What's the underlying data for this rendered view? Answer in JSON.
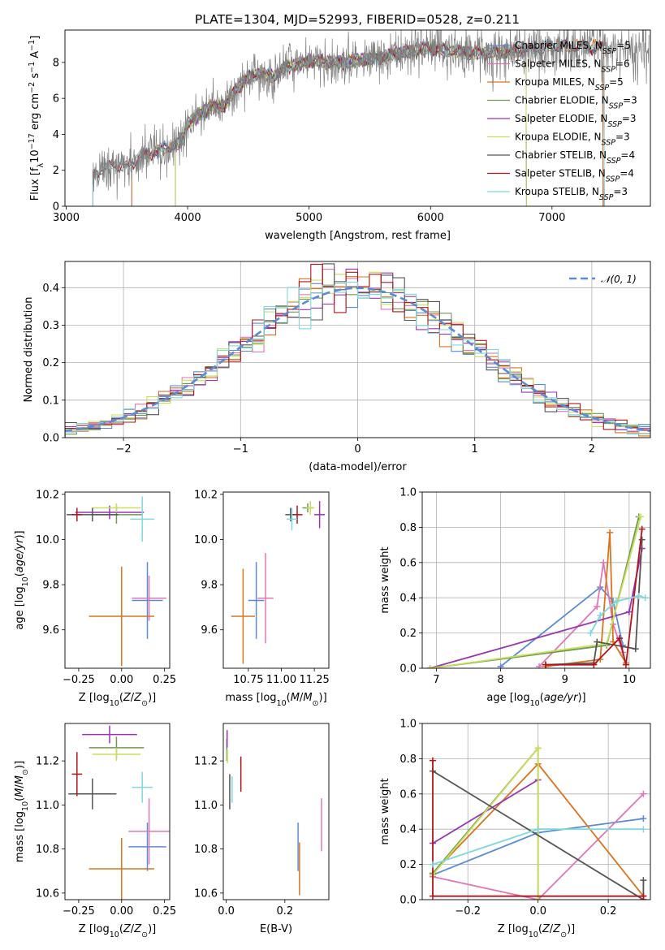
{
  "title": "PLATE=1304, MJD=52993, FIBERID=0528, z=0.211",
  "colors": {
    "Chabrier MILES": "#5b8bd6",
    "Salpeter MILES": "#e276b5",
    "Kroupa MILES": "#d9741d",
    "Chabrier ELODIE": "#6f9a52",
    "Salpeter ELODIE": "#9b34b3",
    "Kroupa ELODIE": "#c8df5a",
    "Chabrier STELIB": "#555555",
    "Salpeter STELIB": "#b3141b",
    "Kroupa STELIB": "#7fd8dd",
    "data": "#808080",
    "normal": "#5b8bd6"
  },
  "chart_data": [
    {
      "type": "line",
      "name": "spectrum",
      "xlabel": "wavelength [Angstrom, rest frame]",
      "ylabel": "Flux [f_λ 10^-17 erg cm^-2 s^-1 A^-1]",
      "xlim": [
        2990,
        7810
      ],
      "ylim": [
        0,
        9.8
      ],
      "xticks": [
        3000,
        4000,
        5000,
        6000,
        7000
      ],
      "yticks": [
        0,
        2,
        4,
        6,
        8
      ],
      "legend_location": "upper-right",
      "series": [
        {
          "name": "Chabrier MILES, N_SSP=5",
          "key": "Chabrier MILES",
          "range": [
            3540,
            7420
          ]
        },
        {
          "name": "Salpeter MILES, N_SSP=6",
          "key": "Salpeter MILES",
          "range": [
            3540,
            7420
          ]
        },
        {
          "name": "Kroupa MILES, N_SSP=5",
          "key": "Kroupa MILES",
          "range": [
            3540,
            7420
          ]
        },
        {
          "name": "Chabrier ELODIE, N_SSP=3",
          "key": "Chabrier ELODIE",
          "range": [
            3900,
            6790
          ]
        },
        {
          "name": "Salpeter ELODIE, N_SSP=3",
          "key": "Salpeter ELODIE",
          "range": [
            3900,
            6790
          ]
        },
        {
          "name": "Kroupa ELODIE, N_SSP=3",
          "key": "Kroupa ELODIE",
          "range": [
            3900,
            6790
          ]
        },
        {
          "name": "Chabrier STELIB, N_SSP=4",
          "key": "Chabrier STELIB",
          "range": [
            3220,
            7430
          ]
        },
        {
          "name": "Salpeter STELIB, N_SSP=4",
          "key": "Salpeter STELIB",
          "range": [
            3220,
            7430
          ]
        },
        {
          "name": "Kroupa STELIB, N_SSP=3",
          "key": "Kroupa STELIB",
          "range": [
            3220,
            7430
          ]
        }
      ],
      "continuum": {
        "x": [
          3220,
          3250,
          3300,
          3400,
          3500,
          3600,
          3700,
          3800,
          3900,
          3950,
          4000,
          4100,
          4200,
          4300,
          4400,
          4500,
          4600,
          4700,
          4800,
          4900,
          5000,
          5200,
          5400,
          5600,
          5800,
          6000,
          6200,
          6400,
          6600,
          6800,
          7000,
          7200,
          7430
        ],
        "y": [
          1.6,
          1.9,
          2.1,
          2.3,
          2.2,
          2.7,
          3.0,
          3.2,
          3.4,
          3.6,
          4.6,
          5.1,
          5.5,
          5.6,
          6.5,
          7.2,
          7.4,
          7.2,
          7.7,
          7.9,
          8.1,
          8.0,
          8.1,
          8.3,
          8.6,
          8.8,
          8.6,
          8.5,
          8.6,
          8.7,
          8.9,
          8.9,
          8.8
        ]
      }
    },
    {
      "type": "bar",
      "name": "residuals",
      "xlabel": "(data-model)/error",
      "ylabel": "Normed distribution",
      "xlim": [
        -2.5,
        2.5
      ],
      "ylim": [
        0,
        0.47
      ],
      "xticks": [
        -2,
        -1,
        0,
        1,
        2
      ],
      "yticks": [
        0.0,
        0.1,
        0.2,
        0.3,
        0.4
      ],
      "grid": true,
      "legend_location": "upper-right",
      "normal_label": "𝒩(0, 1)",
      "bin_width": 0.1
    },
    {
      "type": "scatter",
      "name": "age-Z",
      "xlabel": "Z [log10(Z/Z_sun)]",
      "ylabel": "age [log10(age/yr)]",
      "xlim": [
        -0.33,
        0.28
      ],
      "ylim": [
        9.43,
        10.21
      ],
      "xticks": [
        -0.25,
        0.0,
        0.25
      ],
      "yticks": [
        9.6,
        9.8,
        10.0,
        10.2
      ],
      "points": [
        {
          "key": "Chabrier MILES",
          "x": 0.15,
          "y": 9.73,
          "xerr": 0.09,
          "yerr": 0.17
        },
        {
          "key": "Salpeter MILES",
          "x": 0.16,
          "y": 9.74,
          "xerr": 0.1,
          "yerr": 0.1
        },
        {
          "key": "Kroupa MILES",
          "x": 0.0,
          "y": 9.66,
          "xerr": 0.19,
          "yerr": 0.22
        },
        {
          "key": "Chabrier ELODIE",
          "x": -0.03,
          "y": 10.11,
          "xerr": 0.15,
          "yerr": 0.04
        },
        {
          "key": "Salpeter ELODIE",
          "x": -0.07,
          "y": 10.12,
          "xerr": 0.2,
          "yerr": 0.03
        },
        {
          "key": "Kroupa ELODIE",
          "x": -0.03,
          "y": 10.14,
          "xerr": 0.14,
          "yerr": 0.02
        },
        {
          "key": "Chabrier STELIB",
          "x": -0.17,
          "y": 10.11,
          "xerr": 0.15,
          "yerr": 0.03
        },
        {
          "key": "Salpeter STELIB",
          "x": -0.26,
          "y": 10.11,
          "xerr": 0.03,
          "yerr": 0.03
        },
        {
          "key": "Kroupa STELIB",
          "x": 0.12,
          "y": 10.09,
          "xerr": 0.07,
          "yerr": 0.1
        }
      ]
    },
    {
      "type": "scatter",
      "name": "age-mass",
      "xlabel": "mass [log10(M/M_sun)]",
      "ylabel": "",
      "xlim": [
        10.56,
        11.36
      ],
      "ylim": [
        9.43,
        10.21
      ],
      "xticks": [
        10.75,
        11.0,
        11.25
      ],
      "yticks": [
        9.6,
        9.8,
        10.0,
        10.2
      ],
      "points": [
        {
          "key": "Chabrier MILES",
          "x": 10.81,
          "y": 9.73,
          "xerr": 0.06,
          "yerr": 0.17
        },
        {
          "key": "Salpeter MILES",
          "x": 10.88,
          "y": 9.74,
          "xerr": 0.06,
          "yerr": 0.2
        },
        {
          "key": "Kroupa MILES",
          "x": 10.71,
          "y": 9.66,
          "xerr": 0.09,
          "yerr": 0.21
        },
        {
          "key": "Chabrier ELODIE",
          "x": 11.2,
          "y": 10.14,
          "xerr": 0.04,
          "yerr": 0.02
        },
        {
          "key": "Salpeter ELODIE",
          "x": 11.29,
          "y": 10.11,
          "xerr": 0.04,
          "yerr": 0.06
        },
        {
          "key": "Kroupa ELODIE",
          "x": 11.22,
          "y": 10.14,
          "xerr": 0.03,
          "yerr": 0.03
        },
        {
          "key": "Chabrier STELIB",
          "x": 11.07,
          "y": 10.11,
          "xerr": 0.04,
          "yerr": 0.03
        },
        {
          "key": "Salpeter STELIB",
          "x": 11.12,
          "y": 10.11,
          "xerr": 0.04,
          "yerr": 0.04
        },
        {
          "key": "Kroupa STELIB",
          "x": 11.08,
          "y": 10.09,
          "xerr": 0.04,
          "yerr": 0.05
        }
      ]
    },
    {
      "type": "line",
      "name": "mass-weight-age",
      "xlabel": "age [log10(age/yr)]",
      "ylabel": "mass weight",
      "xlim": [
        6.78,
        10.33
      ],
      "ylim": [
        0,
        1
      ],
      "xticks": [
        7,
        8,
        9,
        10
      ],
      "yticks": [
        0.0,
        0.2,
        0.4,
        0.6,
        0.8,
        1.0
      ],
      "grid": true,
      "series": [
        {
          "key": "Chabrier MILES",
          "x": [
            8.0,
            9.55,
            9.75,
            9.9
          ],
          "y": [
            0.01,
            0.46,
            0.38,
            0.13
          ]
        },
        {
          "key": "Salpeter MILES",
          "x": [
            8.6,
            9.5,
            9.6,
            9.75,
            9.9
          ],
          "y": [
            0.01,
            0.35,
            0.6,
            0.25,
            0.09
          ]
        },
        {
          "key": "Kroupa MILES",
          "x": [
            8.7,
            9.55,
            9.7,
            9.75,
            9.95
          ],
          "y": [
            0.01,
            0.05,
            0.77,
            0.15,
            0.03
          ]
        },
        {
          "key": "Chabrier ELODIE",
          "x": [
            6.9,
            9.65,
            10.15
          ],
          "y": [
            0.0,
            0.13,
            0.86
          ]
        },
        {
          "key": "Salpeter ELODIE",
          "x": [
            6.9,
            10.0,
            10.2
          ],
          "y": [
            0.0,
            0.32,
            0.68
          ]
        },
        {
          "key": "Kroupa ELODIE",
          "x": [
            6.9,
            9.65,
            10.18
          ],
          "y": [
            0.0,
            0.14,
            0.86
          ]
        },
        {
          "key": "Chabrier STELIB",
          "x": [
            8.7,
            9.45,
            9.5,
            10.1,
            10.2
          ],
          "y": [
            0.02,
            0.03,
            0.15,
            0.11,
            0.73
          ]
        },
        {
          "key": "Salpeter STELIB",
          "x": [
            8.7,
            9.45,
            9.85,
            9.95,
            10.2
          ],
          "y": [
            0.02,
            0.02,
            0.17,
            0.02,
            0.79
          ]
        },
        {
          "key": "Kroupa STELIB",
          "x": [
            9.4,
            9.55,
            9.8,
            10.15,
            10.25
          ],
          "y": [
            0.2,
            0.3,
            0.38,
            0.41,
            0.4
          ]
        }
      ]
    },
    {
      "type": "scatter",
      "name": "mass-Z",
      "xlabel": "Z [log10(Z/Z_sun)]",
      "ylabel": "mass [log10(M/M_sun)]",
      "xlim": [
        -0.33,
        0.28
      ],
      "ylim": [
        10.57,
        11.37
      ],
      "xticks": [
        -0.25,
        0.0,
        0.25
      ],
      "yticks": [
        10.6,
        10.8,
        11.0,
        11.2
      ],
      "points": [
        {
          "key": "Chabrier MILES",
          "x": 0.15,
          "y": 10.81,
          "xerr": 0.11,
          "yerr": 0.11
        },
        {
          "key": "Salpeter MILES",
          "x": 0.16,
          "y": 10.88,
          "xerr": 0.12,
          "yerr": 0.15
        },
        {
          "key": "Kroupa MILES",
          "x": 0.0,
          "y": 10.71,
          "xerr": 0.19,
          "yerr": 0.14
        },
        {
          "key": "Chabrier ELODIE",
          "x": -0.03,
          "y": 11.26,
          "xerr": 0.16,
          "yerr": 0.05
        },
        {
          "key": "Salpeter ELODIE",
          "x": -0.07,
          "y": 11.32,
          "xerr": 0.16,
          "yerr": 0.04
        },
        {
          "key": "Kroupa ELODIE",
          "x": -0.03,
          "y": 11.23,
          "xerr": 0.14,
          "yerr": 0.03
        },
        {
          "key": "Chabrier STELIB",
          "x": -0.17,
          "y": 11.05,
          "xerr": 0.14,
          "yerr": 0.07
        },
        {
          "key": "Salpeter STELIB",
          "x": -0.26,
          "y": 11.14,
          "xerr": 0.03,
          "yerr": 0.1
        },
        {
          "key": "Kroupa STELIB",
          "x": 0.12,
          "y": 11.08,
          "xerr": 0.06,
          "yerr": 0.07
        }
      ]
    },
    {
      "type": "scatter",
      "name": "mass-EBV",
      "xlabel": "E(B-V)",
      "ylabel": "",
      "xlim": [
        -0.01,
        0.35
      ],
      "ylim": [
        10.57,
        11.37
      ],
      "xticks": [
        0.0,
        0.2
      ],
      "yticks": [
        10.6,
        10.8,
        11.0,
        11.2
      ],
      "points": [
        {
          "key": "Chabrier MILES",
          "x": 0.245,
          "y": 10.81,
          "xerr": 0.0,
          "yerr": 0.11
        },
        {
          "key": "Salpeter MILES",
          "x": 0.325,
          "y": 10.91,
          "xerr": 0.0,
          "yerr": 0.12
        },
        {
          "key": "Kroupa MILES",
          "x": 0.25,
          "y": 10.71,
          "xerr": 0.0,
          "yerr": 0.12
        },
        {
          "key": "Chabrier ELODIE",
          "x": 0.002,
          "y": 11.25,
          "xerr": 0.0,
          "yerr": 0.05
        },
        {
          "key": "Salpeter ELODIE",
          "x": 0.003,
          "y": 11.3,
          "xerr": 0.0,
          "yerr": 0.04
        },
        {
          "key": "Kroupa ELODIE",
          "x": 0.004,
          "y": 11.22,
          "xerr": 0.0,
          "yerr": 0.03
        },
        {
          "key": "Chabrier STELIB",
          "x": 0.012,
          "y": 11.06,
          "xerr": 0.0,
          "yerr": 0.08
        },
        {
          "key": "Salpeter STELIB",
          "x": 0.05,
          "y": 11.14,
          "xerr": 0.0,
          "yerr": 0.08
        },
        {
          "key": "Kroupa STELIB",
          "x": 0.02,
          "y": 11.07,
          "xerr": 0.0,
          "yerr": 0.06
        }
      ]
    },
    {
      "type": "line",
      "name": "mass-weight-Z",
      "xlabel": "Z [log10(Z/Z_sun)]",
      "ylabel": "mass weight",
      "xlim": [
        -0.33,
        0.32
      ],
      "ylim": [
        0,
        1
      ],
      "xticks": [
        -0.2,
        0.0,
        0.2
      ],
      "yticks": [
        0.0,
        0.2,
        0.4,
        0.6,
        0.8,
        1.0
      ],
      "grid": true,
      "series": [
        {
          "key": "Chabrier MILES",
          "x": [
            -0.3,
            0.0,
            0.3
          ],
          "y": [
            0.14,
            0.38,
            0.46
          ]
        },
        {
          "key": "Salpeter MILES",
          "x": [
            -0.3,
            0.0,
            0.3
          ],
          "y": [
            0.13,
            0.0,
            0.6
          ]
        },
        {
          "key": "Kroupa MILES",
          "x": [
            -0.3,
            0.0,
            0.3
          ],
          "y": [
            0.15,
            0.77,
            0.02
          ]
        },
        {
          "key": "Chabrier ELODIE",
          "x": [
            -0.3,
            0.0,
            0.0
          ],
          "y": [
            0.15,
            0.86,
            0.0
          ]
        },
        {
          "key": "Salpeter ELODIE",
          "x": [
            -0.3,
            0.0
          ],
          "y": [
            0.32,
            0.68
          ]
        },
        {
          "key": "Kroupa ELODIE",
          "x": [
            -0.3,
            0.0,
            0.0
          ],
          "y": [
            0.14,
            0.86,
            0.0
          ]
        },
        {
          "key": "Chabrier STELIB",
          "x": [
            -0.3,
            0.3,
            0.3
          ],
          "y": [
            0.73,
            0.0,
            0.11
          ]
        },
        {
          "key": "Salpeter STELIB",
          "x": [
            -0.3,
            -0.3,
            0.3,
            0.3
          ],
          "y": [
            0.79,
            0.02,
            0.02,
            0.0
          ]
        },
        {
          "key": "Kroupa STELIB",
          "x": [
            -0.3,
            0.0,
            0.3
          ],
          "y": [
            0.2,
            0.4,
            0.4
          ]
        }
      ]
    }
  ]
}
